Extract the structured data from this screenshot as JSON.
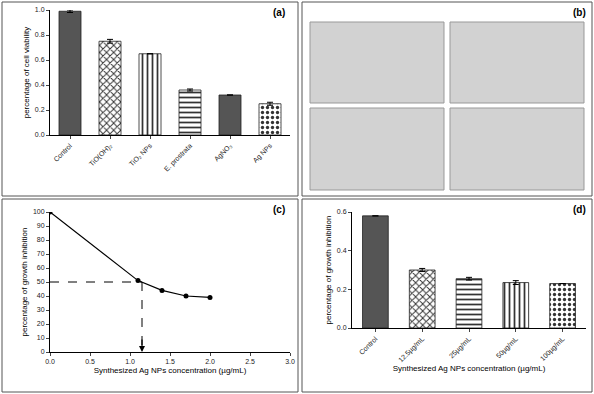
{
  "chart_data": [
    {
      "type": "bar",
      "title": "(a)",
      "categories": [
        "Control",
        "TiO(OH)₂",
        "TiO₂ NPs",
        "E. prostrata",
        "AgNO₃",
        "Ag NPs"
      ],
      "values": [
        0.99,
        0.75,
        0.65,
        0.36,
        0.32,
        0.25
      ],
      "errors": [
        0.01,
        0.015,
        0,
        0.008,
        0,
        0.012
      ],
      "color": "#555555",
      "ylabel": "percentage of cell viability",
      "ylim": [
        0,
        1.0
      ],
      "yticks": [
        {
          "value": 0,
          "label": "0.0"
        },
        0.2,
        0.4,
        0.6,
        0.8,
        {
          "value": 1,
          "label": "1.0"
        }
      ],
      "grid": false
    },
    {
      "type": "image",
      "title": "(b)"
    },
    {
      "type": "line",
      "title": "(c)",
      "x": [
        0,
        1.1,
        1.4,
        1.7,
        2.0
      ],
      "values": [
        100,
        51,
        44,
        40,
        39
      ],
      "reference": {
        "x": 1.15,
        "y": 50
      },
      "xlabel": "Synthesized Ag NPs concentration (µg/mL)",
      "ylabel": "percentage of growth inhibition",
      "xlim": [
        0,
        3
      ],
      "xticks": [
        {
          "value": 0,
          "label": "0.0"
        },
        0.5,
        {
          "value": 1,
          "label": "1.0"
        },
        1.5,
        {
          "value": 2,
          "label": "2.0"
        },
        2.5,
        {
          "value": 3,
          "label": "3.0"
        }
      ],
      "ylim": [
        0,
        100
      ],
      "yticks": [
        0,
        10,
        20,
        30,
        40,
        50,
        60,
        70,
        80,
        90,
        100
      ],
      "color": "#000000",
      "marker": "circle",
      "line_style": "solid",
      "grid": false
    },
    {
      "type": "bar",
      "title": "(d)",
      "categories": [
        "Control",
        "12.5µg/mL",
        "25µg/mL",
        "50µg/mL",
        "100µg/mL"
      ],
      "values": [
        0.58,
        0.3,
        0.255,
        0.235,
        0.23
      ],
      "errors": [
        0,
        0.008,
        0.007,
        0.01,
        0
      ],
      "color": "#555555",
      "xlabel": "Synthesized Ag NPs concentration (µg/mL)",
      "ylabel": "percentage of growth inhibition",
      "ylim": [
        0,
        0.6
      ],
      "yticks": [
        {
          "value": 0,
          "label": "0.0"
        },
        0.2,
        0.4,
        0.6
      ],
      "grid": false
    }
  ]
}
